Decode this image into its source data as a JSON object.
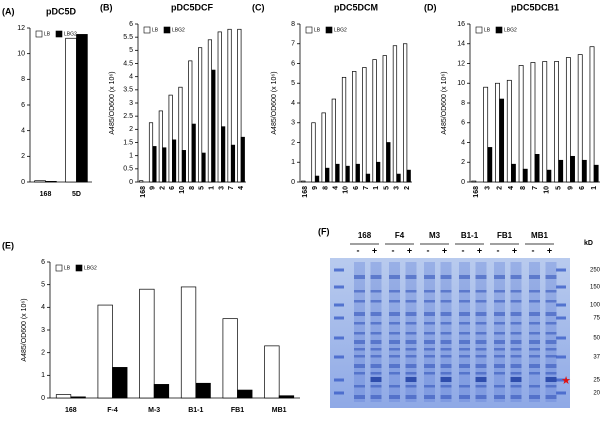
{
  "chart_data": [
    {
      "type": "bar",
      "panel": "(A)",
      "title": "pDC5D",
      "categories": [
        "168",
        "5D"
      ],
      "series": [
        {
          "name": "LB",
          "color": "#ffffff",
          "values": [
            0.1,
            11.2
          ]
        },
        {
          "name": "LBG2",
          "color": "#000000",
          "values": [
            0.05,
            11.5
          ]
        }
      ],
      "ylim": [
        0,
        12
      ],
      "yticks": [
        0,
        2,
        4,
        6,
        8,
        10,
        12
      ]
    },
    {
      "type": "bar",
      "panel": "(B)",
      "title": "pDC5DCF",
      "ylabel": "A485/OD600 (x 10⁶)",
      "categories": [
        "168",
        "9",
        "2",
        "6",
        "10",
        "8",
        "5",
        "1",
        "3",
        "7",
        "4"
      ],
      "series": [
        {
          "name": "LB",
          "color": "#ffffff",
          "values": [
            0.05,
            2.25,
            2.7,
            3.3,
            3.6,
            4.6,
            5.1,
            5.4,
            5.7,
            5.8,
            5.8
          ]
        },
        {
          "name": "LBG2",
          "color": "#000000",
          "values": [
            0,
            1.35,
            1.3,
            1.6,
            1.2,
            2.2,
            1.1,
            4.25,
            2.1,
            1.4,
            1.7
          ]
        }
      ],
      "ylim": [
        0,
        6
      ],
      "yticks": [
        0,
        0.5,
        1,
        1.5,
        2,
        2.5,
        3,
        3.5,
        4,
        4.5,
        5,
        5.5,
        6
      ]
    },
    {
      "type": "bar",
      "panel": "(C)",
      "title": "pDC5DCM",
      "ylabel": "A485/OD600 (x 10⁶)",
      "categories": [
        "168",
        "9",
        "8",
        "4",
        "10",
        "6",
        "7",
        "1",
        "5",
        "3",
        "2"
      ],
      "series": [
        {
          "name": "LB",
          "color": "#ffffff",
          "values": [
            0.05,
            3.0,
            3.5,
            4.2,
            5.3,
            5.6,
            5.8,
            6.2,
            6.4,
            6.9,
            7.0
          ]
        },
        {
          "name": "LBG2",
          "color": "#000000",
          "values": [
            0,
            0.3,
            0.7,
            0.9,
            0.8,
            0.9,
            0.4,
            1.0,
            2.0,
            0.4,
            0.6
          ]
        }
      ],
      "ylim": [
        0,
        8
      ],
      "yticks": [
        0,
        1,
        2,
        3,
        4,
        5,
        6,
        7,
        8
      ]
    },
    {
      "type": "bar",
      "panel": "(D)",
      "title": "pDC5DCB1",
      "ylabel": "A485/OD600 (x 10⁶)",
      "categories": [
        "168",
        "3",
        "2",
        "4",
        "8",
        "7",
        "10",
        "5",
        "9",
        "6",
        "1"
      ],
      "series": [
        {
          "name": "LB",
          "color": "#ffffff",
          "values": [
            0.1,
            9.6,
            10.0,
            10.3,
            11.8,
            12.1,
            12.2,
            12.2,
            12.6,
            12.9,
            13.7
          ]
        },
        {
          "name": "LBG2",
          "color": "#000000",
          "values": [
            0,
            3.5,
            8.4,
            1.8,
            1.3,
            2.8,
            1.2,
            2.2,
            2.6,
            2.2,
            1.7
          ]
        }
      ],
      "ylim": [
        0,
        16
      ],
      "yticks": [
        0,
        2,
        4,
        6,
        8,
        10,
        12,
        14,
        16
      ]
    },
    {
      "type": "bar",
      "panel": "(E)",
      "ylabel": "A485/OD600 (x 10⁶)",
      "categories": [
        "168",
        "F-4",
        "M-3",
        "B1-1",
        "FB1",
        "MB1"
      ],
      "series": [
        {
          "name": "LB",
          "color": "#ffffff",
          "values": [
            0.15,
            4.1,
            4.8,
            4.9,
            3.5,
            2.3
          ]
        },
        {
          "name": "LBG2",
          "color": "#000000",
          "values": [
            0.05,
            1.35,
            0.6,
            0.65,
            0.35,
            0.1
          ]
        }
      ],
      "ylim": [
        0,
        6
      ],
      "yticks": [
        0,
        1,
        2,
        3,
        4,
        5,
        6
      ]
    }
  ],
  "gel": {
    "panel": "(F)",
    "lanes": [
      "168",
      "F4",
      "M3",
      "B1-1",
      "FB1",
      "MB1"
    ],
    "signs": [
      "-",
      "+"
    ],
    "unit": "kD",
    "markers": [
      "250",
      "150",
      "100",
      "75",
      "50",
      "37",
      "25",
      "20"
    ]
  }
}
